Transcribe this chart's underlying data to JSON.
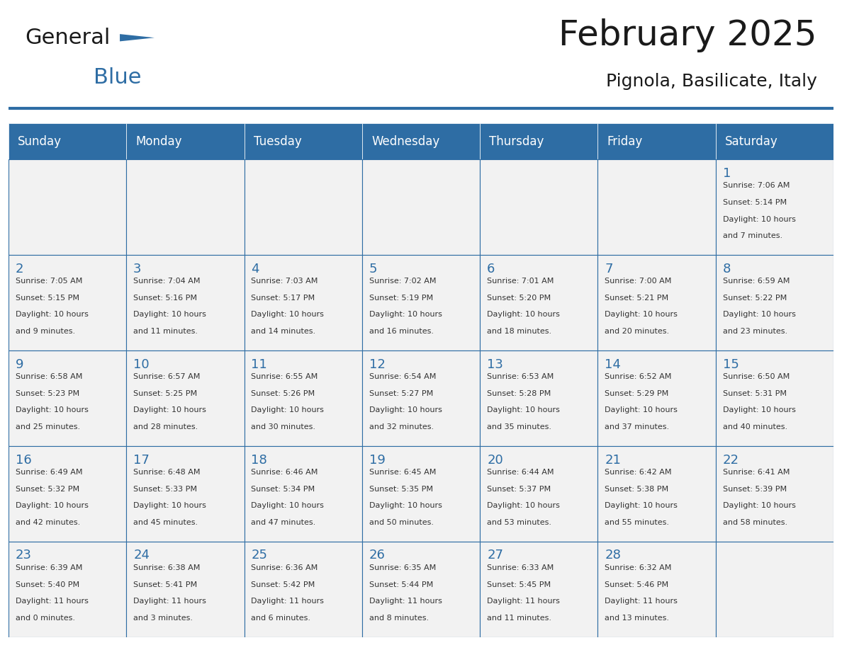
{
  "title": "February 2025",
  "subtitle": "Pignola, Basilicate, Italy",
  "header_bg": "#2E6DA4",
  "header_text_color": "#FFFFFF",
  "cell_bg_light": "#F2F2F2",
  "cell_bg_white": "#FFFFFF",
  "day_headers": [
    "Sunday",
    "Monday",
    "Tuesday",
    "Wednesday",
    "Thursday",
    "Friday",
    "Saturday"
  ],
  "text_color_day": "#2E6DA4",
  "text_color_info": "#333333",
  "border_color": "#2E6DA4",
  "weeks": [
    [
      {
        "day": null,
        "info": ""
      },
      {
        "day": null,
        "info": ""
      },
      {
        "day": null,
        "info": ""
      },
      {
        "day": null,
        "info": ""
      },
      {
        "day": null,
        "info": ""
      },
      {
        "day": null,
        "info": ""
      },
      {
        "day": 1,
        "info": "Sunrise: 7:06 AM\nSunset: 5:14 PM\nDaylight: 10 hours\nand 7 minutes."
      }
    ],
    [
      {
        "day": 2,
        "info": "Sunrise: 7:05 AM\nSunset: 5:15 PM\nDaylight: 10 hours\nand 9 minutes."
      },
      {
        "day": 3,
        "info": "Sunrise: 7:04 AM\nSunset: 5:16 PM\nDaylight: 10 hours\nand 11 minutes."
      },
      {
        "day": 4,
        "info": "Sunrise: 7:03 AM\nSunset: 5:17 PM\nDaylight: 10 hours\nand 14 minutes."
      },
      {
        "day": 5,
        "info": "Sunrise: 7:02 AM\nSunset: 5:19 PM\nDaylight: 10 hours\nand 16 minutes."
      },
      {
        "day": 6,
        "info": "Sunrise: 7:01 AM\nSunset: 5:20 PM\nDaylight: 10 hours\nand 18 minutes."
      },
      {
        "day": 7,
        "info": "Sunrise: 7:00 AM\nSunset: 5:21 PM\nDaylight: 10 hours\nand 20 minutes."
      },
      {
        "day": 8,
        "info": "Sunrise: 6:59 AM\nSunset: 5:22 PM\nDaylight: 10 hours\nand 23 minutes."
      }
    ],
    [
      {
        "day": 9,
        "info": "Sunrise: 6:58 AM\nSunset: 5:23 PM\nDaylight: 10 hours\nand 25 minutes."
      },
      {
        "day": 10,
        "info": "Sunrise: 6:57 AM\nSunset: 5:25 PM\nDaylight: 10 hours\nand 28 minutes."
      },
      {
        "day": 11,
        "info": "Sunrise: 6:55 AM\nSunset: 5:26 PM\nDaylight: 10 hours\nand 30 minutes."
      },
      {
        "day": 12,
        "info": "Sunrise: 6:54 AM\nSunset: 5:27 PM\nDaylight: 10 hours\nand 32 minutes."
      },
      {
        "day": 13,
        "info": "Sunrise: 6:53 AM\nSunset: 5:28 PM\nDaylight: 10 hours\nand 35 minutes."
      },
      {
        "day": 14,
        "info": "Sunrise: 6:52 AM\nSunset: 5:29 PM\nDaylight: 10 hours\nand 37 minutes."
      },
      {
        "day": 15,
        "info": "Sunrise: 6:50 AM\nSunset: 5:31 PM\nDaylight: 10 hours\nand 40 minutes."
      }
    ],
    [
      {
        "day": 16,
        "info": "Sunrise: 6:49 AM\nSunset: 5:32 PM\nDaylight: 10 hours\nand 42 minutes."
      },
      {
        "day": 17,
        "info": "Sunrise: 6:48 AM\nSunset: 5:33 PM\nDaylight: 10 hours\nand 45 minutes."
      },
      {
        "day": 18,
        "info": "Sunrise: 6:46 AM\nSunset: 5:34 PM\nDaylight: 10 hours\nand 47 minutes."
      },
      {
        "day": 19,
        "info": "Sunrise: 6:45 AM\nSunset: 5:35 PM\nDaylight: 10 hours\nand 50 minutes."
      },
      {
        "day": 20,
        "info": "Sunrise: 6:44 AM\nSunset: 5:37 PM\nDaylight: 10 hours\nand 53 minutes."
      },
      {
        "day": 21,
        "info": "Sunrise: 6:42 AM\nSunset: 5:38 PM\nDaylight: 10 hours\nand 55 minutes."
      },
      {
        "day": 22,
        "info": "Sunrise: 6:41 AM\nSunset: 5:39 PM\nDaylight: 10 hours\nand 58 minutes."
      }
    ],
    [
      {
        "day": 23,
        "info": "Sunrise: 6:39 AM\nSunset: 5:40 PM\nDaylight: 11 hours\nand 0 minutes."
      },
      {
        "day": 24,
        "info": "Sunrise: 6:38 AM\nSunset: 5:41 PM\nDaylight: 11 hours\nand 3 minutes."
      },
      {
        "day": 25,
        "info": "Sunrise: 6:36 AM\nSunset: 5:42 PM\nDaylight: 11 hours\nand 6 minutes."
      },
      {
        "day": 26,
        "info": "Sunrise: 6:35 AM\nSunset: 5:44 PM\nDaylight: 11 hours\nand 8 minutes."
      },
      {
        "day": 27,
        "info": "Sunrise: 6:33 AM\nSunset: 5:45 PM\nDaylight: 11 hours\nand 11 minutes."
      },
      {
        "day": 28,
        "info": "Sunrise: 6:32 AM\nSunset: 5:46 PM\nDaylight: 11 hours\nand 13 minutes."
      },
      {
        "day": null,
        "info": ""
      }
    ]
  ],
  "logo_text_general": "General",
  "logo_text_blue": "Blue",
  "logo_color_general": "#1a1a1a",
  "logo_color_blue": "#2E6DA4",
  "logo_triangle_color": "#2E6DA4"
}
